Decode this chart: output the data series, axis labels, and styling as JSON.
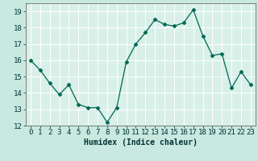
{
  "x": [
    0,
    1,
    2,
    3,
    4,
    5,
    6,
    7,
    8,
    9,
    10,
    11,
    12,
    13,
    14,
    15,
    16,
    17,
    18,
    19,
    20,
    21,
    22,
    23
  ],
  "y": [
    16.0,
    15.4,
    14.6,
    13.9,
    14.5,
    13.3,
    13.1,
    13.1,
    12.2,
    13.1,
    15.9,
    17.0,
    17.7,
    18.5,
    18.2,
    18.1,
    18.3,
    19.1,
    17.5,
    16.3,
    16.4,
    14.3,
    15.3,
    14.5
  ],
  "xlabel": "Humidex (Indice chaleur)",
  "xlim": [
    -0.5,
    23.5
  ],
  "ylim": [
    12,
    19.5
  ],
  "yticks": [
    12,
    13,
    14,
    15,
    16,
    17,
    18,
    19
  ],
  "xticks": [
    0,
    1,
    2,
    3,
    4,
    5,
    6,
    7,
    8,
    9,
    10,
    11,
    12,
    13,
    14,
    15,
    16,
    17,
    18,
    19,
    20,
    21,
    22,
    23
  ],
  "line_color": "#006655",
  "marker": "D",
  "marker_size": 2.5,
  "bg_color": "#c8e8e0",
  "plot_bg_color": "#d8f0e8",
  "grid_color": "#ffffff",
  "label_fontsize": 7,
  "tick_fontsize": 6.5,
  "spine_color": "#555555"
}
